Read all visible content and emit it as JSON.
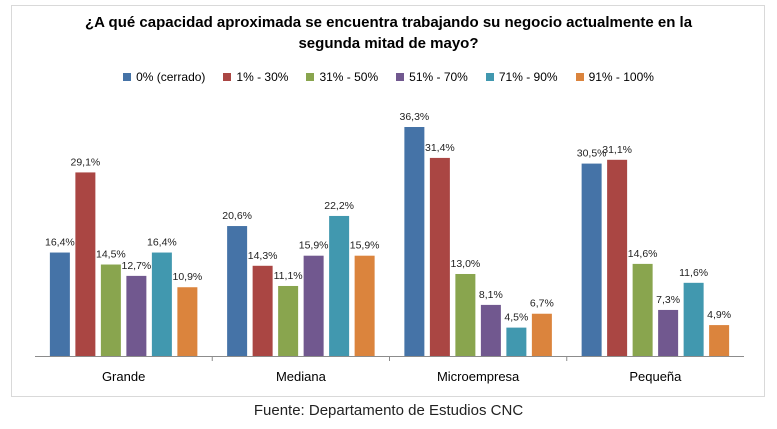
{
  "title_lines": [
    "¿A qué capacidad aproximada se encuentra trabajando su negocio actualmente en la",
    "segunda mitad de mayo?"
  ],
  "source": "Fuente: Departamento de Estudios CNC",
  "chart_data": {
    "type": "bar",
    "title": "¿A qué capacidad aproximada se encuentra trabajando su negocio actualmente en la segunda mitad de mayo?",
    "categories": [
      "Grande",
      "Mediana",
      "Microempresa",
      "Pequeña"
    ],
    "series": [
      {
        "name": "0% (cerrado)",
        "color": "#4573a7",
        "values": [
          16.4,
          20.6,
          36.3,
          30.5
        ],
        "labels": [
          "16,4%",
          "20,6%",
          "36,3%",
          "30,5%"
        ]
      },
      {
        "name": "1% - 30%",
        "color": "#aa4643",
        "values": [
          29.1,
          14.3,
          31.4,
          31.1
        ],
        "labels": [
          "29,1%",
          "14,3%",
          "31,4%",
          "31,1%"
        ]
      },
      {
        "name": "31% - 50%",
        "color": "#89a54e",
        "values": [
          14.5,
          11.1,
          13.0,
          14.6
        ],
        "labels": [
          "14,5%",
          "11,1%",
          "13,0%",
          "14,6%"
        ]
      },
      {
        "name": "51% - 70%",
        "color": "#71588f",
        "values": [
          12.7,
          15.9,
          8.1,
          7.3
        ],
        "labels": [
          "12,7%",
          "15,9%",
          "8,1%",
          "7,3%"
        ]
      },
      {
        "name": "71% - 90%",
        "color": "#4198af",
        "values": [
          16.4,
          22.2,
          4.5,
          11.6
        ],
        "labels": [
          "16,4%",
          "22,2%",
          "4,5%",
          "11,6%"
        ]
      },
      {
        "name": "91% - 100%",
        "color": "#db843d",
        "values": [
          10.9,
          15.9,
          6.7,
          4.9
        ],
        "labels": [
          "10,9%",
          "15,9%",
          "6,7%",
          "4,9%"
        ]
      }
    ],
    "ylim": [
      0,
      36.3
    ],
    "grid": false,
    "legend_position": "top"
  }
}
